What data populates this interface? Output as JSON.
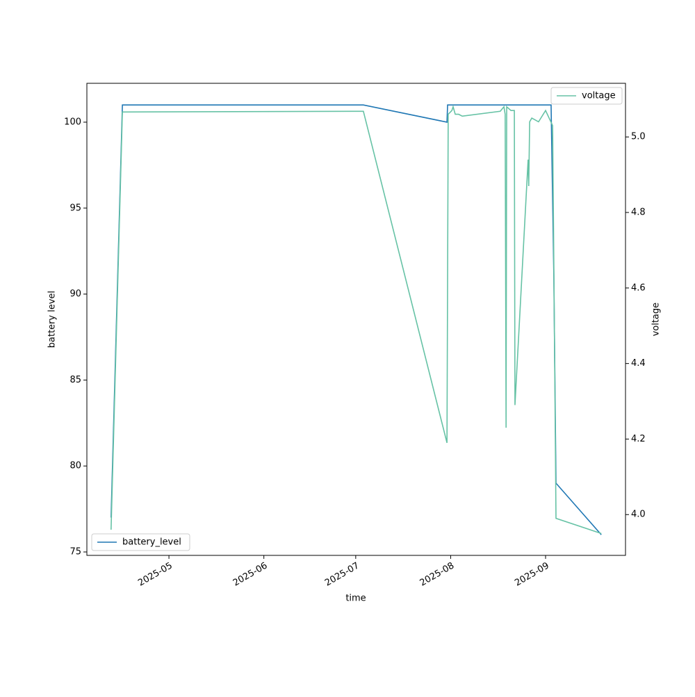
{
  "chart_data": {
    "type": "line",
    "xlabel": "time",
    "ylabel": "battery level",
    "y2label": "voltage",
    "xlim": [
      94.2,
      270.1
    ],
    "xticks": [
      {
        "value": 121,
        "label": "2025-05"
      },
      {
        "value": 152,
        "label": "2025-06"
      },
      {
        "value": 182,
        "label": "2025-07"
      },
      {
        "value": 213,
        "label": "2025-08"
      },
      {
        "value": 244,
        "label": "2025-09"
      }
    ],
    "ylim": [
      74.8,
      102.26
    ],
    "yticks": [
      75,
      80,
      85,
      90,
      95,
      100
    ],
    "y2lim": [
      3.892,
      5.142
    ],
    "y2ticks": [
      {
        "value": 4,
        "label": "4.0"
      },
      4.2,
      4.4,
      4.6,
      4.8,
      {
        "value": 5,
        "label": "5.0"
      }
    ],
    "series": [
      {
        "name": "battery_level",
        "color": "#1f77b4",
        "legend": "lower left",
        "x": [
          102.1,
          105.8,
          184.5,
          211.8,
          212.0,
          245.8,
          246.7,
          247.4,
          262.2
        ],
        "values": [
          77,
          101,
          101,
          100,
          101,
          101,
          91,
          79,
          76
        ]
      },
      {
        "name": "voltage",
        "color": "#66c2a5",
        "axis": "y2",
        "legend": "upper right",
        "x": [
          102.1,
          102.2,
          105.8,
          184.5,
          211.8,
          212.2,
          213.4,
          213.8,
          214.5,
          215.6,
          216.8,
          229.2,
          230.4,
          230.8,
          231.1,
          231.3,
          232.7,
          233.8,
          234.0,
          238.3,
          238.5,
          238.8,
          239.5,
          241.7,
          244.0,
          246.3,
          246.7,
          247.4,
          262.2
        ],
        "values": [
          3.96,
          3.99,
          5.066,
          5.068,
          4.19,
          5.06,
          5.07,
          5.08,
          5.06,
          5.06,
          5.055,
          5.068,
          5.08,
          5.06,
          4.23,
          5.08,
          5.07,
          5.07,
          4.29,
          4.94,
          4.87,
          5.04,
          5.05,
          5.04,
          5.07,
          5.03,
          4.66,
          3.99,
          3.95
        ]
      }
    ]
  }
}
